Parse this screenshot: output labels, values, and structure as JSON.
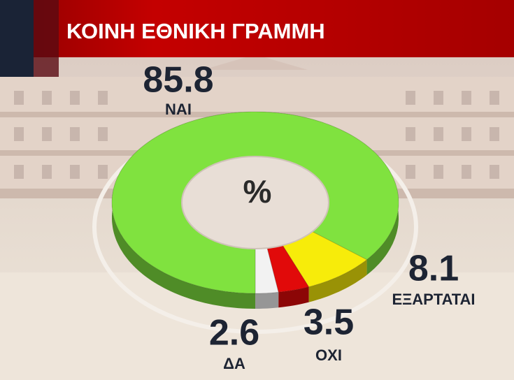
{
  "chart_data": {
    "type": "pie",
    "title": "ΚΟΙΝΗ ΕΘΝΙΚΗ ΓΡΑΜΜΗ",
    "center_label": "%",
    "categories": [
      "ΔΑ",
      "ΟΧΙ",
      "ΕΞΑΡΤΑΤΑΙ",
      "ΝΑΙ"
    ],
    "values": [
      2.6,
      3.5,
      8.1,
      85.8
    ],
    "colors": [
      "#f2f2f2",
      "#e10a0a",
      "#f7ec0a",
      "#80e23f"
    ]
  }
}
